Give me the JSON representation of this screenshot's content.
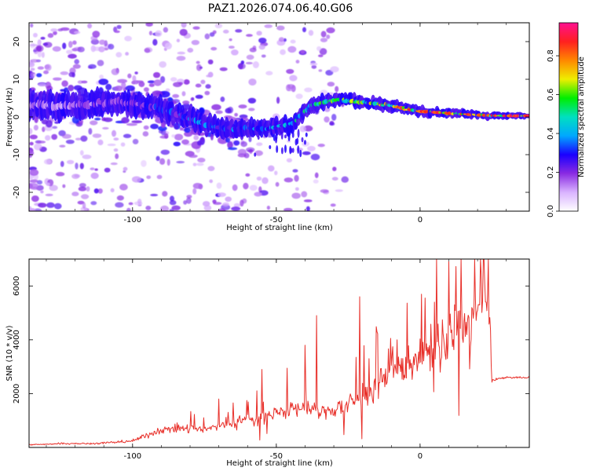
{
  "title": "PAZ1.2026.074.06.40.G06",
  "chart_data": [
    {
      "type": "heatmap",
      "xlabel": "Height of straight line (km)",
      "ylabel": "Frequency (Hz)",
      "xlim": [
        -136,
        38
      ],
      "ylim": [
        -25,
        25
      ],
      "xticks": [
        -100,
        -50,
        0
      ],
      "yticks": [
        -20,
        -10,
        0,
        10,
        20
      ],
      "xtick_labels": [
        "-100",
        "-50",
        "0"
      ],
      "ytick_labels": [
        "-20",
        "-10",
        "0",
        "10",
        "20"
      ],
      "ridge": {
        "x": [
          -136,
          -120,
          -105,
          -95,
          -85,
          -78,
          -70,
          -60,
          -52,
          -45,
          -42,
          -38,
          -33,
          -28,
          -20,
          -10,
          0,
          10,
          20,
          30,
          38
        ],
        "freq": [
          3,
          3,
          4,
          3,
          1,
          -1,
          -3,
          -3,
          -3,
          -2,
          0,
          3,
          4,
          4.5,
          4,
          3,
          1.5,
          1,
          0.5,
          0.3,
          0.3
        ],
        "amplitude": [
          0.15,
          0.18,
          0.22,
          0.3,
          0.35,
          0.38,
          0.38,
          0.4,
          0.42,
          0.5,
          0.52,
          0.55,
          0.6,
          0.65,
          0.68,
          0.72,
          0.75,
          0.8,
          0.85,
          0.92,
          0.95
        ]
      },
      "colorbar": {
        "label": "Normalized spectral amplitude",
        "range": [
          0,
          0.97
        ],
        "ticks": [
          0.0,
          0.2,
          0.4,
          0.6,
          0.8
        ],
        "tick_labels": [
          "0.0",
          "0.2",
          "0.4",
          "0.6",
          "0.8"
        ],
        "colors": [
          "#ffffff",
          "#d9b3ff",
          "#8a2be2",
          "#1a00ff",
          "#00a8ff",
          "#00e0c0",
          "#00ee00",
          "#eeee00",
          "#ff8800",
          "#ff2020",
          "#ff1090"
        ]
      }
    },
    {
      "type": "line",
      "xlabel": "Height of straight line (km)",
      "ylabel": "SNR (10 * v/v)",
      "xlim": [
        -136,
        38
      ],
      "ylim": [
        0,
        7000
      ],
      "xticks": [
        -100,
        -50,
        0
      ],
      "yticks": [
        2000,
        4000,
        6000
      ],
      "xtick_labels": [
        "-100",
        "-50",
        "0"
      ],
      "ytick_labels": [
        "2000",
        "4000",
        "6000"
      ],
      "color": "#e8302a",
      "x": [
        -136,
        -130,
        -125,
        -120,
        -115,
        -110,
        -105,
        -100,
        -95,
        -90,
        -85,
        -80,
        -75,
        -70,
        -65,
        -60,
        -55,
        -50,
        -45,
        -40,
        -35,
        -30,
        -25,
        -20,
        -15,
        -10,
        -5,
        0,
        5,
        10,
        15,
        20,
        24,
        25,
        30,
        35,
        38
      ],
      "y": [
        100,
        120,
        150,
        150,
        140,
        170,
        200,
        250,
        450,
        650,
        700,
        700,
        650,
        800,
        900,
        1000,
        1100,
        1300,
        1400,
        1500,
        1300,
        1400,
        1600,
        1900,
        2300,
        2700,
        3100,
        3400,
        3700,
        4000,
        4400,
        4900,
        5000,
        2500,
        2600,
        2600,
        2600
      ],
      "spikes": [
        {
          "x": -70,
          "y": 1800
        },
        {
          "x": -55,
          "y": 2900
        },
        {
          "x": -40,
          "y": 3800
        },
        {
          "x": -36,
          "y": 4900
        },
        {
          "x": -21,
          "y": 5600
        },
        {
          "x": -15,
          "y": 4300
        },
        {
          "x": -8,
          "y": 4000
        },
        {
          "x": 5,
          "y": 5400
        },
        {
          "x": 10,
          "y": 6900
        },
        {
          "x": 12,
          "y": 5300
        },
        {
          "x": 18,
          "y": 5200
        },
        {
          "x": 23,
          "y": 5400
        }
      ]
    }
  ]
}
